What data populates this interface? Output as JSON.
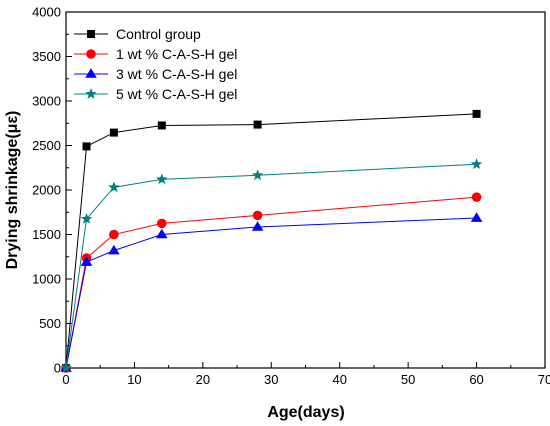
{
  "chart_data": {
    "type": "line",
    "xlabel": "Age(days)",
    "ylabel": "Drying shrinkage(με)",
    "xlim": [
      0,
      70
    ],
    "ylim": [
      0,
      4000
    ],
    "xticks": [
      "0",
      "10",
      "20",
      "30",
      "40",
      "50",
      "60",
      "70"
    ],
    "yticks": [
      "0",
      "500",
      "1000",
      "1500",
      "2000",
      "2500",
      "3000",
      "3500",
      "4000"
    ],
    "legend_position": "top-left",
    "grid": false,
    "series": [
      {
        "name": "Control group",
        "color": "#000000",
        "marker": "square",
        "x": [
          0,
          3,
          7,
          14,
          28,
          60
        ],
        "values": [
          0,
          2490,
          2645,
          2725,
          2735,
          2855
        ]
      },
      {
        "name": "1 wt % C-A-S-H gel",
        "color": "#ff0000",
        "marker": "circle",
        "x": [
          0,
          3,
          7,
          14,
          28,
          60
        ],
        "values": [
          0,
          1235,
          1500,
          1625,
          1715,
          1920
        ]
      },
      {
        "name": "3 wt % C-A-S-H gel",
        "color": "#0000ff",
        "marker": "triangle",
        "x": [
          0,
          3,
          7,
          14,
          28,
          60
        ],
        "values": [
          0,
          1190,
          1320,
          1500,
          1585,
          1685
        ]
      },
      {
        "name": "5 wt % C-A-S-H gel",
        "color": "#008080",
        "marker": "star",
        "x": [
          0,
          3,
          7,
          14,
          28,
          60
        ],
        "values": [
          0,
          1675,
          2030,
          2120,
          2165,
          2290
        ]
      }
    ]
  }
}
